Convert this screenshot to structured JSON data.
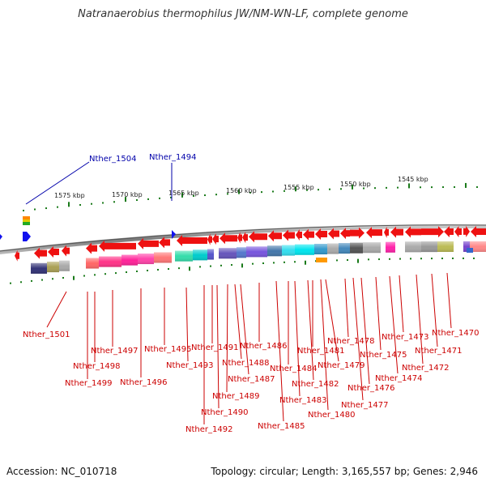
{
  "header": {
    "title": "Natranaerobius thermophilus JW/NM-WN-LF, complete genome"
  },
  "footer": {
    "accession": "Accession: NC_010718",
    "summary": "Topology: circular; Length: 3,165,557 bp; Genes: 2,946"
  },
  "scale": {
    "ticks": [
      {
        "label": "1575 kbp"
      },
      {
        "label": "1570 kbp"
      },
      {
        "label": "1565 kbp"
      },
      {
        "label": "1560 kbp"
      },
      {
        "label": "1555 kbp"
      },
      {
        "label": "1550 kbp"
      },
      {
        "label": "1545 kbp"
      }
    ]
  },
  "blue_labels": [
    "Nther_1504",
    "Nther_1494"
  ],
  "gene_labels": [
    "Nther_1501",
    "Nther_1499",
    "Nther_1498",
    "Nther_1497",
    "Nther_1496",
    "Nther_1495",
    "Nther_1493",
    "Nther_1492",
    "Nther_1491",
    "Nther_1490",
    "Nther_1489",
    "Nther_1488",
    "Nther_1487",
    "Nther_1486",
    "Nther_1485",
    "Nther_1484",
    "Nther_1483",
    "Nther_1482",
    "Nther_1481",
    "Nther_1480",
    "Nther_1479",
    "Nther_1478",
    "Nther_1477",
    "Nther_1476",
    "Nther_1475",
    "Nther_1474",
    "Nther_1473",
    "Nther_1472",
    "Nther_1471",
    "Nther_1470"
  ],
  "colors": {
    "gene_arrow": "#ee1111",
    "label_red": "#cc0000",
    "label_blue": "#0000aa",
    "tick_green": "#1a7a1a",
    "backbone": "#888888"
  }
}
